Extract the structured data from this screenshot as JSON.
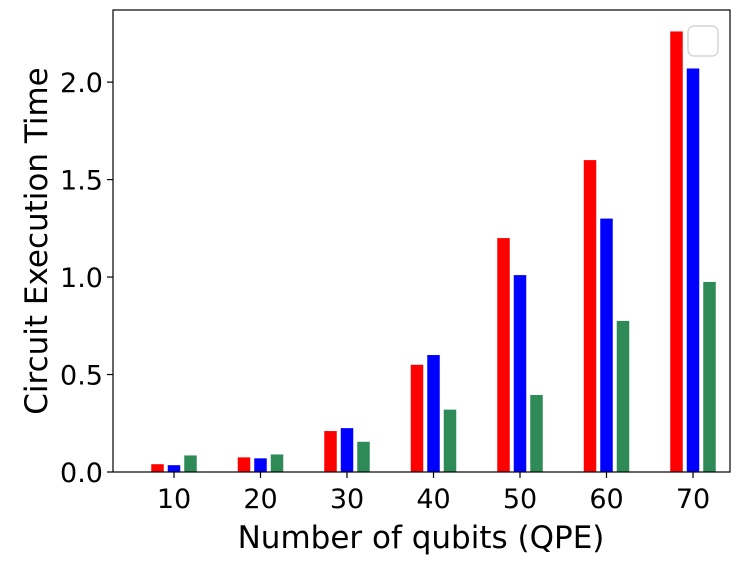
{
  "chart_data": {
    "type": "bar",
    "title": "",
    "xlabel": "Number of qubits (QPE)",
    "ylabel": "Circuit Execution Time",
    "categories": [
      "10",
      "20",
      "30",
      "40",
      "50",
      "60",
      "70"
    ],
    "series": [
      {
        "color": "#ff0000",
        "values": [
          0.04,
          0.075,
          0.21,
          0.55,
          1.2,
          1.6,
          2.26
        ]
      },
      {
        "color": "#0000ff",
        "values": [
          0.035,
          0.07,
          0.225,
          0.6,
          1.01,
          1.3,
          2.07
        ]
      },
      {
        "color": "#2e8b57",
        "values": [
          0.085,
          0.09,
          0.155,
          0.32,
          0.395,
          0.775,
          0.975
        ]
      }
    ],
    "ylim": [
      0,
      2.37
    ],
    "yticks": [
      0.0,
      0.5,
      1.0,
      1.5,
      2.0
    ],
    "ytick_labels": [
      "0.0",
      "0.5",
      "1.0",
      "1.5",
      "2.0"
    ],
    "grid": false,
    "legend": {
      "position": "top-right",
      "entries": []
    }
  }
}
